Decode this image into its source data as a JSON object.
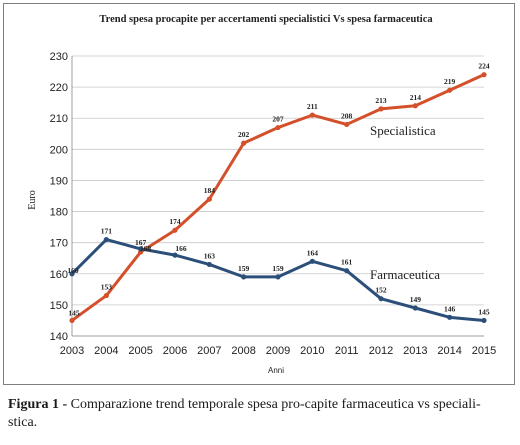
{
  "chart_data": {
    "type": "line",
    "title": "Trend spesa procapite per accertamenti specialistici Vs spesa farmaceutica",
    "xlabel": "Anni",
    "ylabel": "Euro",
    "ylim": [
      140,
      230
    ],
    "yticks": [
      140,
      150,
      160,
      170,
      180,
      190,
      200,
      210,
      220,
      230
    ],
    "grid": "horizontal",
    "categories": [
      "2003",
      "2004",
      "2005",
      "2006",
      "2007",
      "2008",
      "2009",
      "2010",
      "2011",
      "2012",
      "2013",
      "2014",
      "2015"
    ],
    "series": [
      {
        "name": "Specialistica",
        "color": "#d4502a",
        "values": [
          145,
          153,
          167,
          174,
          184,
          202,
          207,
          211,
          208,
          213,
          214,
          219,
          224
        ]
      },
      {
        "name": "Farmaceutica",
        "color": "#2c4f7a",
        "values": [
          160,
          171,
          168,
          166,
          163,
          159,
          159,
          164,
          161,
          152,
          149,
          146,
          145
        ]
      }
    ]
  },
  "caption": {
    "label": "Figura 1 -",
    "text": " Comparazione trend temporale spesa pro-capite farmaceutica vs speciali- stica."
  }
}
